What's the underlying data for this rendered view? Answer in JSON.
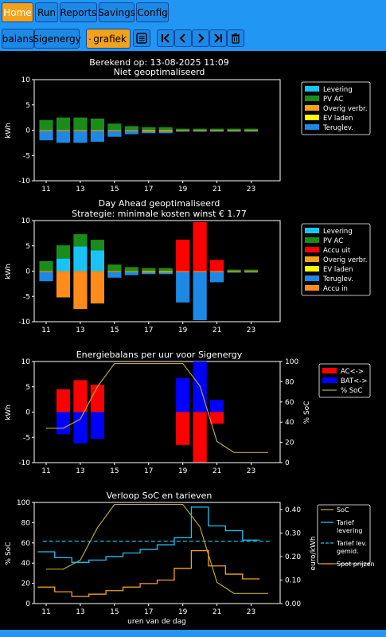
{
  "nav": {
    "tabs": [
      {
        "label": "Home",
        "active": true
      },
      {
        "label": "Run"
      },
      {
        "label": "Reports"
      },
      {
        "label": "Savings"
      },
      {
        "label": "Config"
      }
    ]
  },
  "toolbar": {
    "balans_label": "balans",
    "sigenergy_label": "Sigenergy",
    "grafiek_label": "grafiek"
  },
  "header": {
    "computed": "Berekend op: 13-08-2025 11:09"
  },
  "chart_data": [
    {
      "type": "bar",
      "title": "Niet geoptimaliseerd",
      "ylabel": "kWh",
      "ylim": [
        -10,
        10
      ],
      "x": [
        11,
        12,
        13,
        14,
        15,
        16,
        17,
        18,
        19,
        20,
        21,
        22,
        23
      ],
      "series": [
        {
          "name": "Levering",
          "color": "#19c3f5",
          "values": [
            0,
            0,
            0,
            0,
            0,
            0,
            0,
            0,
            0,
            0,
            0,
            0,
            0
          ]
        },
        {
          "name": "PV AC",
          "color": "#1a8c1a",
          "values": [
            2.0,
            2.5,
            2.5,
            2.3,
            1.3,
            0.8,
            0.6,
            0.6,
            0.3,
            0.3,
            0.3,
            0.3,
            0.3
          ]
        },
        {
          "name": "Overig verbr.",
          "color": "#f5a21b",
          "values": [
            -0.2,
            -0.2,
            -0.2,
            -0.2,
            -0.2,
            -0.2,
            -0.3,
            -0.3,
            -0.2,
            -0.2,
            -0.2,
            -0.2,
            -0.2
          ]
        },
        {
          "name": "EV laden",
          "color": "#ffff00",
          "values": [
            0,
            0,
            0,
            0,
            0,
            0,
            0,
            0,
            0,
            0,
            0,
            0,
            0
          ]
        },
        {
          "name": "Teruglev.",
          "color": "#1e88e5",
          "values": [
            -1.8,
            -2.3,
            -2.3,
            -2.1,
            -1.1,
            -0.6,
            -0.3,
            -0.3,
            -0.1,
            -0.1,
            -0.1,
            -0.1,
            -0.1
          ]
        }
      ]
    },
    {
      "type": "bar",
      "title": "Day Ahead geoptimaliseerd",
      "subtitle": "Strategie: minimale kosten winst € 1.77",
      "ylabel": "kWh",
      "ylim": [
        -10,
        10
      ],
      "x": [
        11,
        12,
        13,
        14,
        15,
        16,
        17,
        18,
        19,
        20,
        21,
        22,
        23
      ],
      "series": [
        {
          "name": "Levering",
          "color": "#19c3f5",
          "values": [
            0,
            2.5,
            4.9,
            4.1,
            0,
            0,
            0,
            0,
            0,
            0,
            0,
            0,
            0
          ]
        },
        {
          "name": "PV AC",
          "color": "#1a8c1a",
          "values": [
            2.0,
            2.6,
            2.4,
            2.1,
            1.3,
            0.8,
            0.6,
            0.6,
            0,
            0,
            0,
            0.3,
            0.3
          ]
        },
        {
          "name": "Accu uit",
          "color": "#ff0000",
          "values": [
            0,
            0,
            0,
            0,
            0,
            0,
            0,
            0,
            6.2,
            9.7,
            2.2,
            0,
            0
          ]
        },
        {
          "name": "Overig verbr.",
          "color": "#f5a21b",
          "values": [
            -0.2,
            -0.2,
            -0.2,
            -0.2,
            -0.2,
            -0.2,
            -0.3,
            -0.3,
            -0.2,
            -0.2,
            -0.2,
            -0.2,
            -0.2
          ]
        },
        {
          "name": "EV laden",
          "color": "#ffff00",
          "values": [
            0,
            0,
            0,
            0,
            0,
            0,
            0,
            0,
            0,
            0,
            0,
            0,
            0
          ]
        },
        {
          "name": "Teruglev.",
          "color": "#1e88e5",
          "values": [
            -1.8,
            0,
            0,
            0,
            -1.1,
            -0.6,
            -0.3,
            -0.3,
            -6.0,
            -9.5,
            -2.0,
            -0.1,
            -0.1
          ]
        },
        {
          "name": "Accu in",
          "color": "#ff8c1a",
          "values": [
            0,
            -5.0,
            -7.3,
            -6.2,
            0,
            0,
            0,
            0,
            0,
            0,
            0,
            0,
            0
          ]
        }
      ]
    },
    {
      "type": "bar",
      "title": "Energiebalans per uur voor Sigenergy",
      "ylabel": "kWh",
      "y2label": "% SoC",
      "ylim": [
        -10,
        10
      ],
      "y2lim": [
        0,
        100
      ],
      "x": [
        11,
        12,
        13,
        14,
        15,
        16,
        17,
        18,
        19,
        20,
        21,
        22,
        23
      ],
      "series": [
        {
          "name": "AC<->",
          "color": "#ff0000",
          "values": [
            0,
            4.5,
            6.3,
            5.4,
            0,
            0,
            0,
            0,
            -6.5,
            -9.9,
            -2.3,
            0,
            0
          ]
        },
        {
          "name": "BAT<->",
          "color": "#0000ff",
          "values": [
            0,
            -4.4,
            -6.2,
            -5.3,
            0,
            0,
            0,
            0,
            6.7,
            10.0,
            2.4,
            0,
            0
          ]
        }
      ],
      "soc": {
        "name": "% SoC",
        "color": "#b5a642",
        "x": [
          10.5,
          11.5,
          12.5,
          13.5,
          14.5,
          15.5,
          16.5,
          17.5,
          18.5,
          19.5,
          20.5,
          21.5,
          22.5,
          23.5
        ],
        "values": [
          34,
          34,
          43,
          75,
          98,
          98,
          98,
          98,
          98,
          76,
          21,
          10,
          10,
          10
        ]
      }
    },
    {
      "type": "line",
      "title": "Verloop SoC en tarieven",
      "xlabel": "uren van de dag",
      "ylabel": "% SoC",
      "y2label": "euro/kWh",
      "ylim": [
        0,
        100
      ],
      "y2lim": [
        0,
        0.43
      ],
      "soc": {
        "name": "SoC",
        "color": "#b5a642",
        "x": [
          10.5,
          11.5,
          12.5,
          13.5,
          14.5,
          15.5,
          16.5,
          17.5,
          18.5,
          19.5,
          20.5,
          21.5,
          22.5,
          23.5
        ],
        "values": [
          34,
          34,
          43,
          75,
          98,
          98,
          98,
          98,
          98,
          76,
          21,
          10,
          10,
          10
        ]
      },
      "tarief_levering": {
        "name": "Tarief\nlevering",
        "color": "#19c3f5",
        "values": [
          0.22,
          0.195,
          0.175,
          0.185,
          0.2,
          0.215,
          0.23,
          0.25,
          0.28,
          0.41,
          0.33,
          0.31,
          0.27
        ]
      },
      "tarief_gemid": {
        "name": "Tarief lev.\ngemid.",
        "color": "#19c3f5",
        "value": 0.265
      },
      "spot": {
        "name": "Spot prijzen",
        "color": "#f5a21b",
        "values": [
          0.07,
          0.05,
          0.03,
          0.04,
          0.055,
          0.07,
          0.085,
          0.1,
          0.15,
          0.225,
          0.16,
          0.125,
          0.105
        ]
      }
    }
  ]
}
